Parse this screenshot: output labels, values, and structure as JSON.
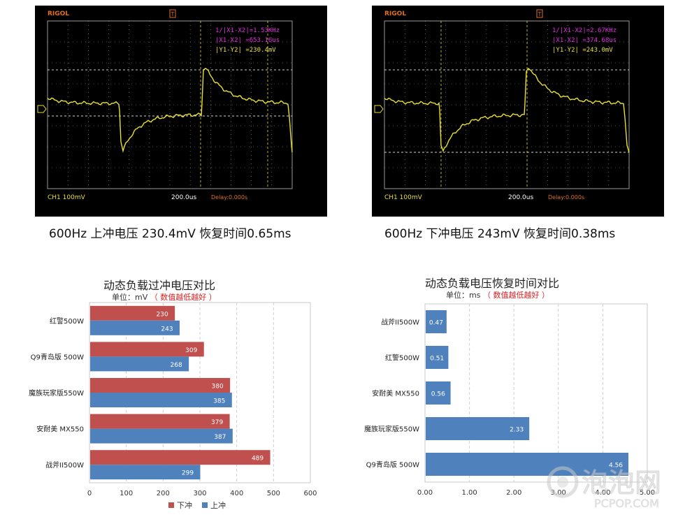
{
  "scopes": [
    {
      "brand": "RIGOL",
      "marker": "T",
      "readouts": [
        "1/|X1-X2|=1.53KHz",
        "|X1-X2|   =653.16us",
        "|Y1-Y2|   =230.4mV"
      ],
      "ch_label": "CH1 100mV",
      "timebase": "200.0us",
      "delay": "Delay:0.000s",
      "caption": "600Hz 上冲电压 230.4mV 恢复时间0.65ms"
    },
    {
      "brand": "RIGOL",
      "marker": "T",
      "readouts": [
        "1/|X1-X2|=2.67KHz",
        "|X1-X2|   =374.68us",
        "|Y1-Y2|   =243.0mV"
      ],
      "ch_label": "CH1 100mV",
      "timebase": "200.0us",
      "delay": "Delay:0.000s",
      "caption": "600Hz 下冲电压 243mV 恢复时间0.38ms"
    }
  ],
  "colors": {
    "scope_bg": "#000000",
    "trace": "#e8e030",
    "grid": "#9a9a9a",
    "cursor": "#e8e030",
    "scope_brand": "#e07020",
    "readout": "#e030e0",
    "delay": "#e07020",
    "red_series": "#c0504d",
    "blue_series": "#4f81bd",
    "note_red": "#e02020"
  },
  "watermark": {
    "text": "泡泡网",
    "url": "PCPOP.COM"
  },
  "chart_data": [
    {
      "type": "bar",
      "orientation": "horizontal",
      "title": "动态负载过冲电压对比",
      "subtitle": "单位：mV",
      "note": "（ 数值越低越好 ）",
      "categories": [
        "红警500W",
        "Q9青岛版  500W",
        "魔族玩家版550W",
        "安耐美  MX550",
        "战斧II500W"
      ],
      "series": [
        {
          "name": "下冲",
          "color": "#c0504d",
          "values": [
            230,
            309,
            380,
            379,
            489
          ]
        },
        {
          "name": "上冲",
          "color": "#4f81bd",
          "values": [
            243,
            268,
            385,
            387,
            299
          ]
        }
      ],
      "xlim": [
        0,
        600
      ],
      "xticks": [
        0,
        100,
        200,
        300,
        400,
        500,
        600
      ],
      "xtick_labels": [
        "0",
        "100",
        "200",
        "300",
        "400",
        "500",
        "600"
      ],
      "grid": true,
      "legend": "bottom"
    },
    {
      "type": "bar",
      "orientation": "horizontal",
      "title": "动态负载电压恢复时间对比",
      "subtitle": "单位：ms",
      "note": "（ 数值越低越好 ）",
      "categories": [
        "战斧II500W",
        "红警500W",
        "安耐美  MX550",
        "魔族玩家版550W",
        "Q9青岛版  500W"
      ],
      "series": [
        {
          "color": "#4f81bd",
          "values": [
            0.47,
            0.51,
            0.56,
            2.33,
            4.56
          ]
        }
      ],
      "value_labels": [
        "0.47",
        "0.51",
        "0.56",
        "2.33",
        "4.56"
      ],
      "xlim": [
        0,
        5
      ],
      "xticks": [
        0,
        1,
        2,
        3,
        4,
        5
      ],
      "xtick_labels": [
        "0.00",
        "1.00",
        "2.00",
        "3.00",
        "4.00",
        "5.00"
      ],
      "grid": true
    }
  ]
}
